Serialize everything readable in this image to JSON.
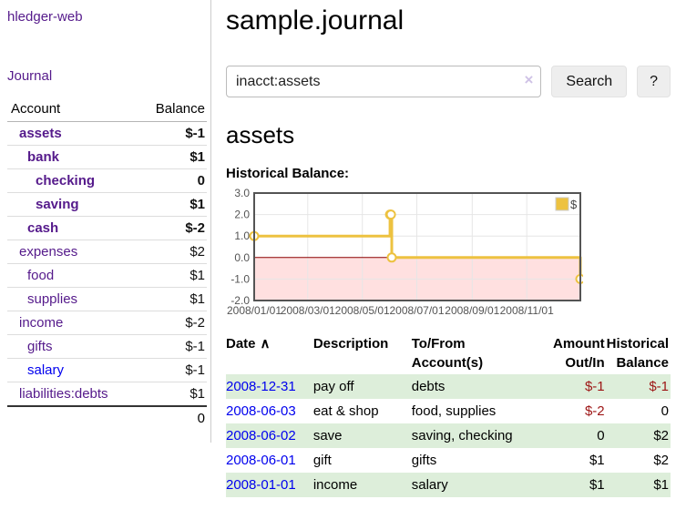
{
  "app": {
    "brand": "hledger-web"
  },
  "sidebar": {
    "journal_label": "Journal",
    "accounts_table": {
      "headers": {
        "account": "Account",
        "balance": "Balance"
      },
      "rows": [
        {
          "name": "assets",
          "depth": 1,
          "bold": true,
          "link_color": "purple",
          "balance": "$-1",
          "balance_class": "neg-strong"
        },
        {
          "name": "bank",
          "depth": 2,
          "bold": true,
          "link_color": "purple",
          "balance": "$1",
          "balance_class": "pos"
        },
        {
          "name": "checking",
          "depth": 3,
          "bold": true,
          "link_color": "purple",
          "balance": "0",
          "balance_class": "pos"
        },
        {
          "name": "saving",
          "depth": 3,
          "bold": true,
          "link_color": "purple",
          "balance": "$1",
          "balance_class": "pos"
        },
        {
          "name": "cash",
          "depth": 2,
          "bold": true,
          "link_color": "purple",
          "balance": "$-2",
          "balance_class": "neg-strong"
        },
        {
          "name": "expenses",
          "depth": 1,
          "bold": false,
          "link_color": "purple",
          "balance": "$2",
          "balance_class": "pos"
        },
        {
          "name": "food",
          "depth": 2,
          "bold": false,
          "link_color": "purple",
          "balance": "$1",
          "balance_class": "pos"
        },
        {
          "name": "supplies",
          "depth": 2,
          "bold": false,
          "link_color": "purple",
          "balance": "$1",
          "balance_class": "pos"
        },
        {
          "name": "income",
          "depth": 1,
          "bold": false,
          "link_color": "purple",
          "balance": "$-2",
          "balance_class": "neg-muted"
        },
        {
          "name": "gifts",
          "depth": 2,
          "bold": false,
          "link_color": "purple",
          "balance": "$-1",
          "balance_class": "neg-muted"
        },
        {
          "name": "salary",
          "depth": 2,
          "bold": false,
          "link_color": "blue",
          "balance": "$-1",
          "balance_class": "neg-muted"
        },
        {
          "name": "liabilities:debts",
          "depth": 1,
          "bold": false,
          "link_color": "purple",
          "balance": "$1",
          "balance_class": "pos"
        }
      ],
      "total": "0"
    }
  },
  "main": {
    "title": "sample.journal",
    "search": {
      "value": "inacct:assets",
      "clear_icon": "×",
      "button_label": "Search",
      "help_label": "?"
    },
    "account_heading": "assets",
    "chart_label": "Historical Balance:"
  },
  "chart_data": {
    "type": "line",
    "style": "step",
    "title": "Historical Balance",
    "series": [
      {
        "name": "$",
        "points": [
          [
            "2008-01-01",
            1.0
          ],
          [
            "2008-06-01",
            2.0
          ],
          [
            "2008-06-02",
            2.0
          ],
          [
            "2008-06-03",
            0.0
          ],
          [
            "2008-12-31",
            -1.0
          ]
        ]
      }
    ],
    "xlim": [
      "2008-01-01",
      "2008-12-31"
    ],
    "ylim": [
      -2.0,
      3.0
    ],
    "yticks": [
      -2.0,
      -1.0,
      0.0,
      1.0,
      2.0,
      3.0
    ],
    "xticks": [
      {
        "date": "2008-01-01",
        "label": "2008/01/01"
      },
      {
        "date": "2008-03-01",
        "label": "2008/03/01"
      },
      {
        "date": "2008-05-01",
        "label": "2008/05/01"
      },
      {
        "date": "2008-07-01",
        "label": "2008/07/01"
      },
      {
        "date": "2008-09-01",
        "label": "2008/09/01"
      },
      {
        "date": "2008-11-01",
        "label": "2008/11/01"
      }
    ],
    "legend": {
      "label": "$",
      "position": "top-right"
    },
    "grid": true,
    "colors": {
      "line": "#edc240",
      "marker_fill": "#ffffff",
      "negative_zone": "rgba(255,0,0,0.12)",
      "zero_line": "#8b0000",
      "grid": "#e6e6e6",
      "border": "#545454",
      "label": "#545454"
    }
  },
  "register": {
    "headers": [
      {
        "label": "Date",
        "sort_icon": "∧"
      },
      {
        "label": "Description"
      },
      {
        "label": "To/From Account(s)"
      },
      {
        "label": "Amount Out/In"
      },
      {
        "label": "Historical Balance"
      }
    ],
    "rows": [
      {
        "date": "2008-12-31",
        "description": "pay off",
        "accounts": "debts",
        "amount": "$-1",
        "amount_class": "neg",
        "balance": "$-1",
        "balance_class": "neg"
      },
      {
        "date": "2008-06-03",
        "description": "eat & shop",
        "accounts": "food, supplies",
        "amount": "$-2",
        "amount_class": "neg",
        "balance": "0",
        "balance_class": "pos"
      },
      {
        "date": "2008-06-02",
        "description": "save",
        "accounts": "saving, checking",
        "amount": "0",
        "amount_class": "pos",
        "balance": "$2",
        "balance_class": "pos"
      },
      {
        "date": "2008-06-01",
        "description": "gift",
        "accounts": "gifts",
        "amount": "$1",
        "amount_class": "pos",
        "balance": "$2",
        "balance_class": "pos"
      },
      {
        "date": "2008-01-01",
        "description": "income",
        "accounts": "salary",
        "amount": "$1",
        "amount_class": "pos",
        "balance": "$1",
        "balance_class": "pos"
      }
    ]
  }
}
